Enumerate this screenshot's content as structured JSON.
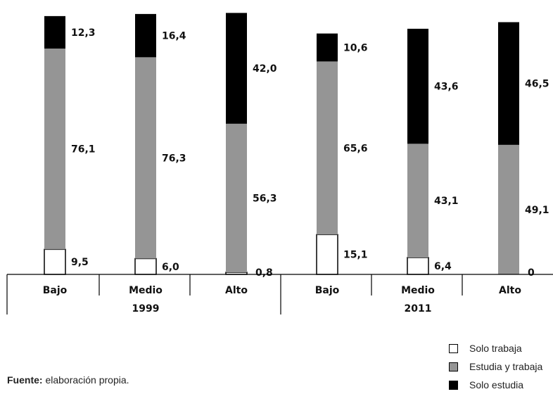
{
  "chart_data": {
    "type": "bar",
    "stacked": true,
    "groups": [
      {
        "label": "1999",
        "categories": [
          "Bajo",
          "Medio",
          "Alto"
        ]
      },
      {
        "label": "2011",
        "categories": [
          "Bajo",
          "Medio",
          "Alto"
        ]
      }
    ],
    "series": [
      {
        "name": "Solo trabaja",
        "color": "#ffffff",
        "values": [
          9.5,
          6.0,
          0.8,
          15.1,
          6.4,
          0
        ],
        "labels": [
          "9,5",
          "6,0",
          "0,8",
          "15,1",
          "6,4",
          "0"
        ]
      },
      {
        "name": "Estudia y trabaja",
        "color": "#959595",
        "values": [
          76.1,
          76.3,
          56.3,
          65.6,
          43.1,
          49.1
        ],
        "labels": [
          "76,1",
          "76,3",
          "56,3",
          "65,6",
          "43,1",
          "49,1"
        ]
      },
      {
        "name": "Solo estudia",
        "color": "#000000",
        "values": [
          12.3,
          16.4,
          42.0,
          10.6,
          43.6,
          46.5
        ],
        "labels": [
          "12,3",
          "16,4",
          "42,0",
          "10,6",
          "43,6",
          "46,5"
        ]
      }
    ],
    "legend_position": "bottom-right",
    "grid": false
  },
  "source": {
    "label": "Fuente:",
    "text": " elaboración propia."
  }
}
